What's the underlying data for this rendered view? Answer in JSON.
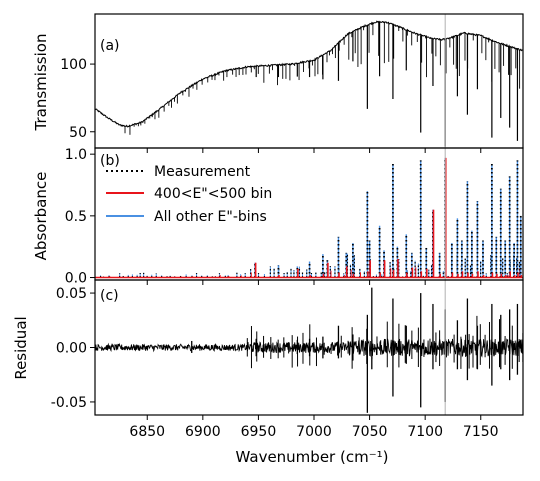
{
  "chart_data": [
    {
      "type": "line",
      "panel_label": "(a)",
      "ylabel": "Transmission",
      "xlim": [
        6803,
        7188
      ],
      "ylim": [
        38,
        137
      ],
      "yticks": [
        50,
        100
      ],
      "xticks": [
        6850,
        6900,
        6950,
        7000,
        7050,
        7100,
        7150
      ],
      "baseline_points": [
        [
          6803,
          67
        ],
        [
          6815,
          60
        ],
        [
          6825,
          55
        ],
        [
          6832,
          54
        ],
        [
          6845,
          57
        ],
        [
          6860,
          66
        ],
        [
          6880,
          79
        ],
        [
          6900,
          89
        ],
        [
          6920,
          95
        ],
        [
          6940,
          98
        ],
        [
          6960,
          99
        ],
        [
          6980,
          100
        ],
        [
          7000,
          103
        ],
        [
          7015,
          110
        ],
        [
          7030,
          122
        ],
        [
          7045,
          128
        ],
        [
          7055,
          131
        ],
        [
          7065,
          131
        ],
        [
          7075,
          128
        ],
        [
          7090,
          123
        ],
        [
          7105,
          119
        ],
        [
          7115,
          118
        ],
        [
          7125,
          120
        ],
        [
          7135,
          123
        ],
        [
          7150,
          121
        ],
        [
          7165,
          116
        ],
        [
          7180,
          112
        ],
        [
          7188,
          110
        ]
      ],
      "strong_lines": [
        {
          "x": 7048,
          "depth": 62
        },
        {
          "x": 7059,
          "depth": 40
        },
        {
          "x": 7071,
          "depth": 55
        },
        {
          "x": 7083,
          "depth": 30
        },
        {
          "x": 7096,
          "depth": 72
        },
        {
          "x": 7107,
          "depth": 35
        },
        {
          "x": 7118,
          "depth": 88
        },
        {
          "x": 7129,
          "depth": 45
        },
        {
          "x": 7138,
          "depth": 60
        },
        {
          "x": 7147,
          "depth": 40
        },
        {
          "x": 7160,
          "depth": 72
        },
        {
          "x": 7168,
          "depth": 55
        },
        {
          "x": 7176,
          "depth": 60
        },
        {
          "x": 7183,
          "depth": 68
        },
        {
          "x": 7022,
          "depth": 28
        },
        {
          "x": 7035,
          "depth": 22
        },
        {
          "x": 7008,
          "depth": 18
        },
        {
          "x": 6996,
          "depth": 12
        },
        {
          "x": 6985,
          "depth": 10
        },
        {
          "x": 6968,
          "depth": 9
        },
        {
          "x": 6948,
          "depth": 8
        }
      ]
    },
    {
      "type": "line",
      "panel_label": "(b)",
      "ylabel": "Absorbance",
      "xlim": [
        6803,
        7188
      ],
      "ylim": [
        -0.02,
        1.05
      ],
      "yticks": [
        0.0,
        0.5,
        1.0
      ],
      "ytick_labels": [
        "0.0",
        "0.5",
        "1.0"
      ],
      "series": [
        {
          "name": "Measurement",
          "color": "#000000",
          "style": "dotted"
        },
        {
          "name": "400<E\"<500 bin",
          "color": "#e8141b",
          "style": "solid"
        },
        {
          "name": "All other E\"-bins",
          "color": "#4a90e2",
          "style": "solid"
        }
      ],
      "peaks": [
        {
          "x": 6947,
          "measured": 0.12,
          "bin": 0.12
        },
        {
          "x": 6968,
          "measured": 0.1,
          "bin": 0.02
        },
        {
          "x": 6985,
          "measured": 0.09,
          "bin": 0.07
        },
        {
          "x": 6996,
          "measured": 0.13,
          "bin": 0.02
        },
        {
          "x": 7008,
          "measured": 0.19,
          "bin": 0.03
        },
        {
          "x": 7012,
          "measured": 0.14,
          "bin": 0.12
        },
        {
          "x": 7022,
          "measured": 0.33,
          "bin": 0.04
        },
        {
          "x": 7029,
          "measured": 0.2,
          "bin": 0.09
        },
        {
          "x": 7035,
          "measured": 0.28,
          "bin": 0.03
        },
        {
          "x": 7048,
          "measured": 0.7,
          "bin": 0.05
        },
        {
          "x": 7050,
          "measured": 0.3,
          "bin": 0.14
        },
        {
          "x": 7059,
          "measured": 0.42,
          "bin": 0.04
        },
        {
          "x": 7063,
          "measured": 0.22,
          "bin": 0.14
        },
        {
          "x": 7071,
          "measured": 0.92,
          "bin": 0.06
        },
        {
          "x": 7075,
          "measured": 0.25,
          "bin": 0.15
        },
        {
          "x": 7083,
          "measured": 0.35,
          "bin": 0.04
        },
        {
          "x": 7088,
          "measured": 0.2,
          "bin": 0.08
        },
        {
          "x": 7096,
          "measured": 0.95,
          "bin": 0.05
        },
        {
          "x": 7101,
          "measured": 0.24,
          "bin": 0.07
        },
        {
          "x": 7107,
          "measured": 0.55,
          "bin": 0.55
        },
        {
          "x": 7113,
          "measured": 0.2,
          "bin": 0.03
        },
        {
          "x": 7118,
          "measured": 0.97,
          "bin": 0.97
        },
        {
          "x": 7124,
          "measured": 0.28,
          "bin": 0.04
        },
        {
          "x": 7129,
          "measured": 0.48,
          "bin": 0.03
        },
        {
          "x": 7133,
          "measured": 0.3,
          "bin": 0.05
        },
        {
          "x": 7138,
          "measured": 0.78,
          "bin": 0.04
        },
        {
          "x": 7142,
          "measured": 0.38,
          "bin": 0.03
        },
        {
          "x": 7147,
          "measured": 0.62,
          "bin": 0.05
        },
        {
          "x": 7152,
          "measured": 0.3,
          "bin": 0.02
        },
        {
          "x": 7160,
          "measured": 0.92,
          "bin": 0.04
        },
        {
          "x": 7164,
          "measured": 0.33,
          "bin": 0.03
        },
        {
          "x": 7168,
          "measured": 0.72,
          "bin": 0.03
        },
        {
          "x": 7172,
          "measured": 0.3,
          "bin": 0.02
        },
        {
          "x": 7176,
          "measured": 0.82,
          "bin": 0.05
        },
        {
          "x": 7180,
          "measured": 0.28,
          "bin": 0.02
        },
        {
          "x": 7183,
          "measured": 0.95,
          "bin": 0.04
        },
        {
          "x": 7186,
          "measured": 0.5,
          "bin": 0.02
        }
      ]
    },
    {
      "type": "line",
      "panel_label": "(c)",
      "ylabel": "Residual",
      "xlabel": "Wavenumber (cm⁻¹)",
      "xlim": [
        6803,
        7188
      ],
      "ylim": [
        -0.062,
        0.062
      ],
      "yticks": [
        -0.05,
        0.0,
        0.05
      ],
      "ytick_labels": [
        "-0.05",
        "0.00",
        "0.05"
      ],
      "xticks": [
        6850,
        6900,
        6950,
        7000,
        7050,
        7100,
        7150
      ],
      "xtick_labels": [
        "6850",
        "6900",
        "6950",
        "7000",
        "7050",
        "7100",
        "7150"
      ],
      "spikes": [
        {
          "x": 7048,
          "lo": -0.06,
          "hi": 0.03
        },
        {
          "x": 7052,
          "lo": -0.02,
          "hi": 0.055
        },
        {
          "x": 7071,
          "lo": -0.045,
          "hi": 0.045
        },
        {
          "x": 7083,
          "lo": -0.015,
          "hi": 0.02
        },
        {
          "x": 7096,
          "lo": -0.055,
          "hi": 0.05
        },
        {
          "x": 7107,
          "lo": -0.02,
          "hi": 0.04
        },
        {
          "x": 7118,
          "lo": -0.05,
          "hi": 0.035
        },
        {
          "x": 7129,
          "lo": -0.02,
          "hi": 0.025
        },
        {
          "x": 7138,
          "lo": -0.03,
          "hi": 0.045
        },
        {
          "x": 7147,
          "lo": -0.02,
          "hi": 0.02
        },
        {
          "x": 7160,
          "lo": -0.035,
          "hi": 0.04
        },
        {
          "x": 7168,
          "lo": -0.02,
          "hi": 0.03
        },
        {
          "x": 7176,
          "lo": -0.03,
          "hi": 0.035
        },
        {
          "x": 7183,
          "lo": -0.025,
          "hi": 0.04
        },
        {
          "x": 7022,
          "lo": -0.01,
          "hi": 0.02
        },
        {
          "x": 7035,
          "lo": -0.012,
          "hi": 0.012
        },
        {
          "x": 7008,
          "lo": -0.01,
          "hi": 0.01
        },
        {
          "x": 6996,
          "lo": -0.008,
          "hi": 0.008
        },
        {
          "x": 6985,
          "lo": -0.006,
          "hi": 0.007
        },
        {
          "x": 6948,
          "lo": -0.008,
          "hi": 0.008
        },
        {
          "x": 6890,
          "lo": -0.005,
          "hi": 0.006
        }
      ]
    }
  ],
  "reference_line": {
    "x": 7118,
    "color": "#b0b0b0"
  }
}
